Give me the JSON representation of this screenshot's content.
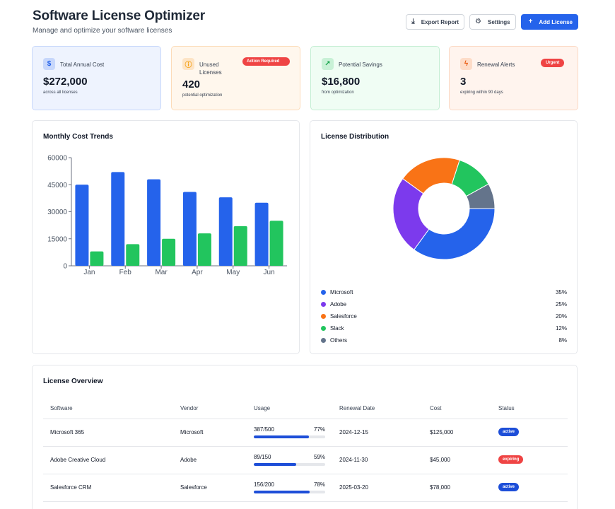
{
  "header": {
    "title": "Software License Optimizer",
    "subtitle": "Manage and optimize your software licenses",
    "export_label": "Export Report",
    "settings_label": "Settings",
    "add_label": "Add License",
    "export_icon": "download-icon",
    "settings_icon": "gear-icon",
    "add_icon": "plus-icon"
  },
  "stats": [
    {
      "label": "Total Annual Cost",
      "value": "$272,000",
      "sub": "across all licenses",
      "icon": "dollar-icon",
      "bg": "#eef3fe",
      "border": "#c7d7fb",
      "icon_bg": "#c7d7fb",
      "icon_color": "#2563eb"
    },
    {
      "label": "Unused Licenses",
      "value": "420",
      "sub": "potential optimization",
      "icon": "alert-circle-icon",
      "badge": "Action Required",
      "bg": "#fff7ed",
      "border": "#fcdcb9",
      "icon_bg": "#fde4c6",
      "icon_color": "#f59e0b"
    },
    {
      "label": "Potential Savings",
      "value": "$16,800",
      "sub": "from optimization",
      "icon": "trend-up-icon",
      "bg": "#f0fdf4",
      "border": "#c4eed3",
      "icon_bg": "#c8f1d6",
      "icon_color": "#16a34a"
    },
    {
      "label": "Renewal Alerts",
      "value": "3",
      "sub": "expiring within 90 days",
      "icon": "zap-icon",
      "badge": "Urgent",
      "bg": "#fff4ee",
      "border": "#fbd8c4",
      "icon_bg": "#fddcc8",
      "icon_color": "#ea580c"
    }
  ],
  "colors": {
    "microsoft": "#2563eb",
    "adobe": "#7c3aed",
    "salesforce": "#f97316",
    "slack": "#22c55e",
    "others": "#64748b",
    "bar_blue": "#2563eb",
    "bar_green": "#22c55e",
    "badge_red": "#ef4444"
  },
  "chart_data": [
    {
      "type": "bar",
      "title": "Monthly Cost Trends",
      "categories": [
        "Jan",
        "Feb",
        "Mar",
        "Apr",
        "May",
        "Jun"
      ],
      "series": [
        {
          "values": [
            45000,
            52000,
            48000,
            41000,
            38000,
            35000
          ],
          "color": "#2563eb"
        },
        {
          "values": [
            8000,
            12000,
            15000,
            18000,
            22000,
            25000
          ],
          "color": "#22c55e"
        }
      ],
      "ylim": [
        0,
        60000
      ],
      "yticks": [
        0,
        15000,
        30000,
        45000,
        60000
      ],
      "grid": false
    },
    {
      "type": "pie",
      "title": "License Distribution",
      "donut": true,
      "slices": [
        {
          "label": "Microsoft",
          "value": 35,
          "pct": "35%",
          "color": "#2563eb"
        },
        {
          "label": "Adobe",
          "value": 25,
          "pct": "25%",
          "color": "#7c3aed"
        },
        {
          "label": "Salesforce",
          "value": 20,
          "pct": "20%",
          "color": "#f97316"
        },
        {
          "label": "Slack",
          "value": 12,
          "pct": "12%",
          "color": "#22c55e"
        },
        {
          "label": "Others",
          "value": 8,
          "pct": "8%",
          "color": "#64748b"
        }
      ]
    }
  ],
  "table": {
    "title": "License Overview",
    "columns": [
      "Software",
      "Vendor",
      "Usage",
      "Renewal Date",
      "Cost",
      "Status"
    ],
    "rows": [
      {
        "software": "Microsoft 365",
        "vendor": "Microsoft",
        "usage_text": "387/500",
        "usage_pct": "77%",
        "usage_value": 0.77,
        "renewal": "2024-12-15",
        "cost": "$125,000",
        "status": "active",
        "status_color": "#1d4ed8"
      },
      {
        "software": "Adobe Creative Cloud",
        "vendor": "Adobe",
        "usage_text": "89/150",
        "usage_pct": "59%",
        "usage_value": 0.59,
        "renewal": "2024-11-30",
        "cost": "$45,000",
        "status": "expiring",
        "status_color": "#ef4444"
      },
      {
        "software": "Salesforce CRM",
        "vendor": "Salesforce",
        "usage_text": "156/200",
        "usage_pct": "78%",
        "usage_value": 0.78,
        "renewal": "2025-03-20",
        "cost": "$78,000",
        "status": "active",
        "status_color": "#1d4ed8"
      }
    ]
  }
}
